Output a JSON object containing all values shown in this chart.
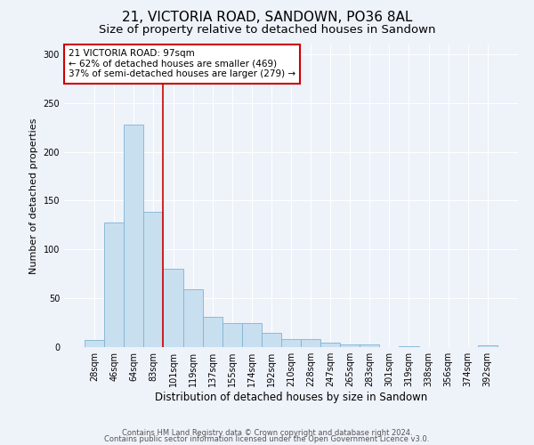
{
  "title": "21, VICTORIA ROAD, SANDOWN, PO36 8AL",
  "subtitle": "Size of property relative to detached houses in Sandown",
  "xlabel": "Distribution of detached houses by size in Sandown",
  "ylabel": "Number of detached properties",
  "bar_labels": [
    "28sqm",
    "46sqm",
    "64sqm",
    "83sqm",
    "101sqm",
    "119sqm",
    "137sqm",
    "155sqm",
    "174sqm",
    "192sqm",
    "210sqm",
    "228sqm",
    "247sqm",
    "265sqm",
    "283sqm",
    "301sqm",
    "319sqm",
    "338sqm",
    "356sqm",
    "374sqm",
    "392sqm"
  ],
  "bar_values": [
    7,
    128,
    228,
    139,
    80,
    59,
    31,
    25,
    25,
    15,
    8,
    8,
    5,
    3,
    3,
    0,
    1,
    0,
    0,
    0,
    2
  ],
  "bar_color": "#c8dff0",
  "bar_edge_color": "#7fb3d3",
  "vline_color": "#cc0000",
  "annotation_lines": [
    "21 VICTORIA ROAD: 97sqm",
    "← 62% of detached houses are smaller (469)",
    "37% of semi-detached houses are larger (279) →"
  ],
  "box_color": "#cc0000",
  "ylim": [
    0,
    310
  ],
  "yticks": [
    0,
    50,
    100,
    150,
    200,
    250,
    300
  ],
  "footer1": "Contains HM Land Registry data © Crown copyright and database right 2024.",
  "footer2": "Contains public sector information licensed under the Open Government Licence v3.0.",
  "bg_color": "#eef2f9",
  "plot_bg_color": "#eef2f9",
  "grid_color": "#ffffff",
  "title_fontsize": 11,
  "subtitle_fontsize": 9.5,
  "ylabel_fontsize": 8,
  "xlabel_fontsize": 8.5,
  "tick_fontsize": 7,
  "annot_fontsize": 7.5,
  "footer_fontsize": 6
}
